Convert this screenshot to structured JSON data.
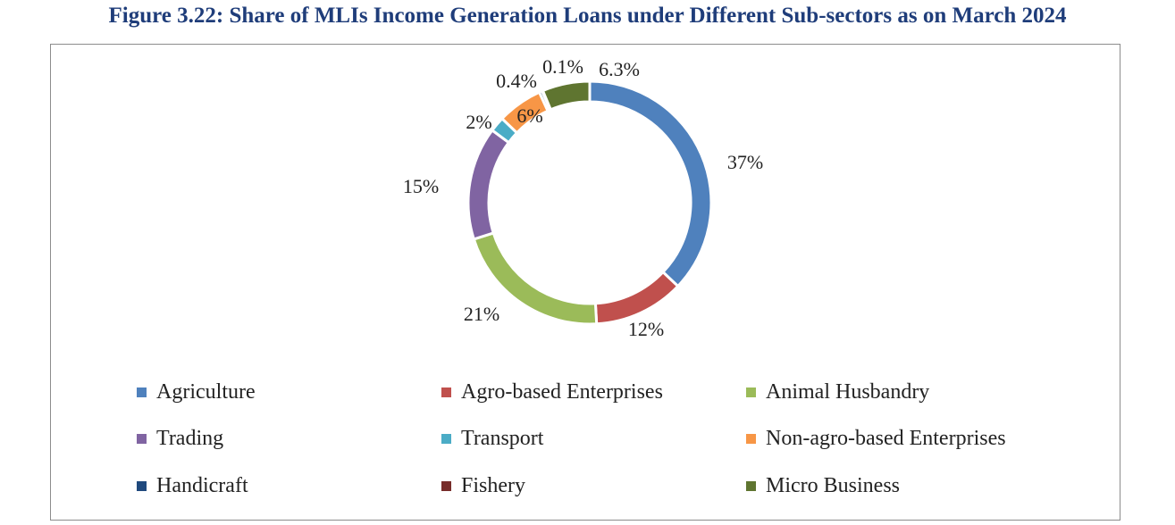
{
  "title": "Figure 3.22: Share of MLIs Income Generation Loans under Different Sub-sectors as on March 2024",
  "chart_data": {
    "type": "pie",
    "variant": "donut",
    "title": "Figure 3.22: Share of MLIs Income Generation Loans under Different Sub-sectors as on March 2024",
    "legend_position": "bottom",
    "slices": [
      {
        "name": "Agriculture",
        "value": 37,
        "label": "37%",
        "color": "#4f81bd"
      },
      {
        "name": "Agro-based Enterprises",
        "value": 12,
        "label": "12%",
        "color": "#c0504d"
      },
      {
        "name": "Animal Husbandry",
        "value": 21,
        "label": "21%",
        "color": "#9bbb59"
      },
      {
        "name": "Trading",
        "value": 15,
        "label": "15%",
        "color": "#8064a2"
      },
      {
        "name": "Transport",
        "value": 2,
        "label": "2%",
        "color": "#4bacc6"
      },
      {
        "name": "Non-agro-based Enterprises",
        "value": 6,
        "label": "6%",
        "color": "#f79646"
      },
      {
        "name": "Handicraft",
        "value": 0.4,
        "label": "0.4%",
        "color": "#1f497d"
      },
      {
        "name": "Fishery",
        "value": 0.1,
        "label": "0.1%",
        "color": "#772c2a"
      },
      {
        "name": "Micro Business",
        "value": 6.3,
        "label": "6.3%",
        "color": "#5f7530"
      }
    ]
  }
}
